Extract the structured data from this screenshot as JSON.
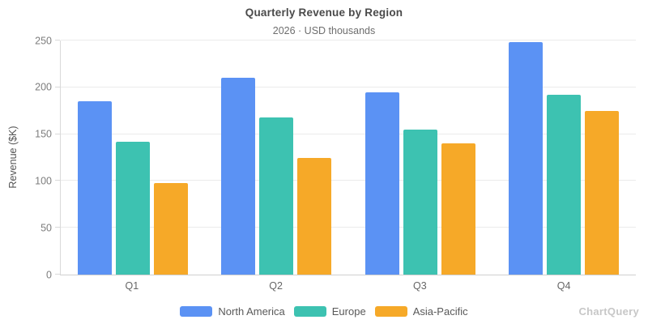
{
  "header": {
    "title": "Quarterly Revenue by Region",
    "subtitle": "2026 · USD thousands"
  },
  "chart_data": {
    "type": "bar",
    "title": "Quarterly Revenue by Region",
    "subtitle": "2026 · USD thousands",
    "xlabel": "",
    "ylabel": "Revenue ($K)",
    "categories": [
      "Q1",
      "Q2",
      "Q3",
      "Q4"
    ],
    "series": [
      {
        "name": "North America",
        "color": "#5b92f4",
        "values": [
          185,
          210,
          195,
          248
        ]
      },
      {
        "name": "Europe",
        "color": "#3dc2b1",
        "values": [
          142,
          168,
          155,
          192
        ]
      },
      {
        "name": "Asia-Pacific",
        "color": "#f6a928",
        "values": [
          98,
          125,
          140,
          175
        ]
      }
    ],
    "ylim": [
      0,
      250
    ],
    "yticks": [
      0,
      50,
      100,
      150,
      200,
      250
    ],
    "grid": true,
    "legend_position": "bottom"
  },
  "watermark": "ChartQuery"
}
